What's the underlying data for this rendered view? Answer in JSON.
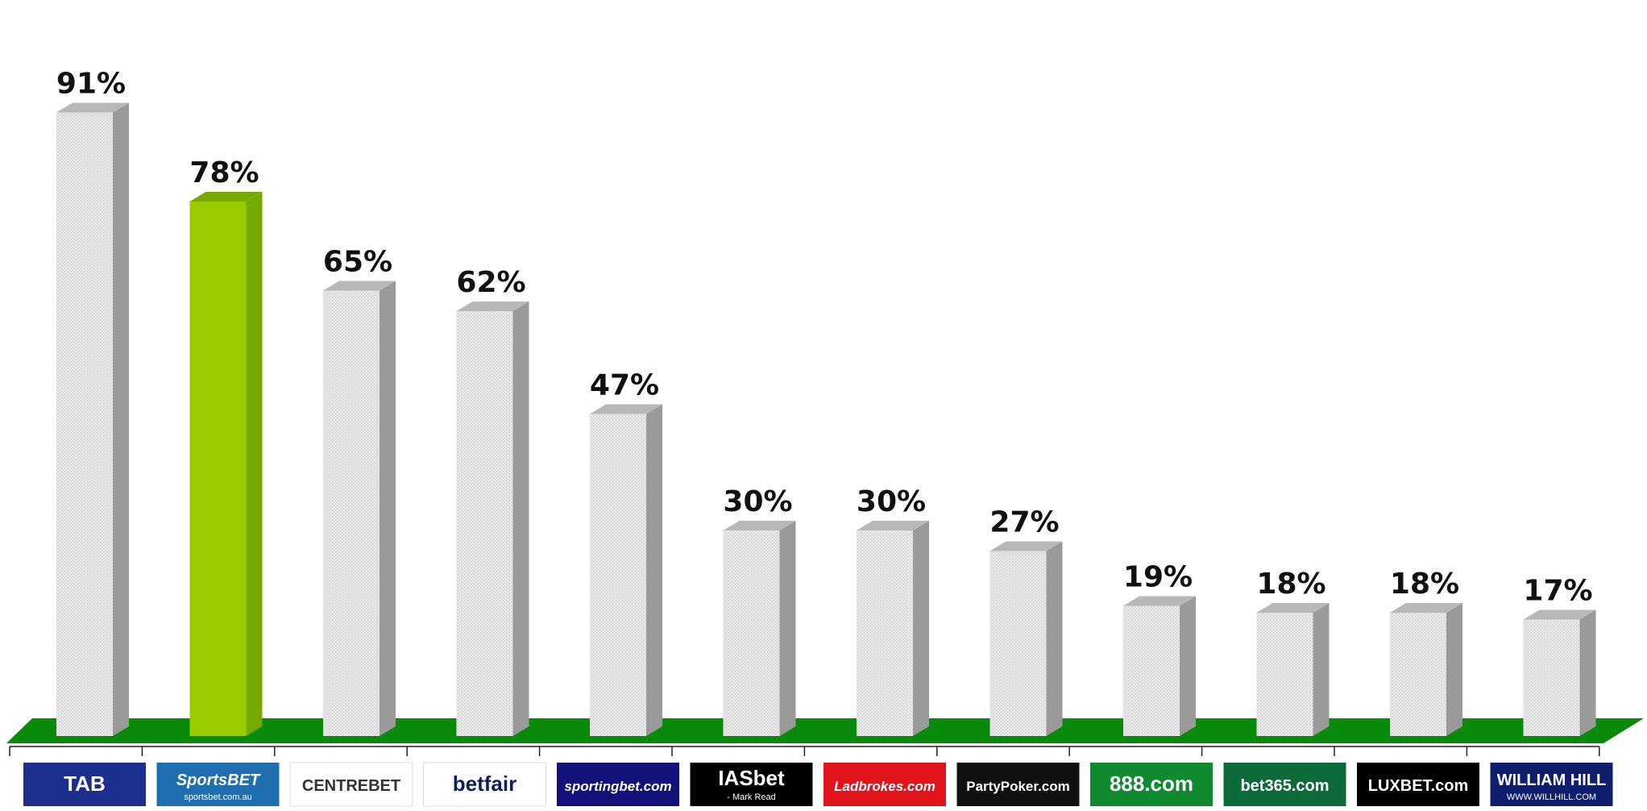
{
  "chart_data": {
    "type": "bar",
    "categories": [
      "TAB",
      "SportsBet",
      "Centrebet",
      "betfair",
      "sportingbet.com",
      "IASbet",
      "Ladbrokes.com",
      "PartyPoker.com",
      "888.com",
      "bet365.com",
      "LUXBET.com",
      "William Hill"
    ],
    "values": [
      91,
      78,
      65,
      62,
      47,
      30,
      30,
      27,
      19,
      18,
      18,
      17
    ],
    "value_labels": [
      "91%",
      "78%",
      "65%",
      "62%",
      "47%",
      "30%",
      "30%",
      "27%",
      "19%",
      "18%",
      "18%",
      "17%"
    ],
    "highlight_index": 1,
    "ylim": [
      0,
      100
    ],
    "grid": false,
    "legend": "none",
    "colors": {
      "bar_face": "#e4e4e4",
      "bar_side": "#9a9a9a",
      "bar_top": "#b8b8b8",
      "highlight_face": "#99cc00",
      "highlight_side": "#77aa00",
      "floor": "#0a8a0a"
    }
  },
  "logos": [
    {
      "text": "TAB",
      "bg": "#1c2f8f",
      "fg": "#ffffff"
    },
    {
      "text": "SportsBET",
      "sub": "sportsbet.com.au",
      "bg": "#1f6fb0",
      "fg": "#ffffff"
    },
    {
      "text": "CENTREBET",
      "bg": "#ffffff",
      "fg": "#333333"
    },
    {
      "text": "betfair",
      "bg": "#ffffff",
      "fg": "#0a1f5c"
    },
    {
      "text": "sportingbet.com",
      "bg": "#12127a",
      "fg": "#ffffff"
    },
    {
      "text": "IASbet",
      "sub": "- Mark Read",
      "bg": "#000000",
      "fg": "#ffffff"
    },
    {
      "text": "Ladbrokes.com",
      "bg": "#e2141b",
      "fg": "#ffffff"
    },
    {
      "text": "PartyPoker.com",
      "bg": "#111111",
      "fg": "#ffffff"
    },
    {
      "text": "888.com",
      "bg": "#0f8a2e",
      "fg": "#ffffff"
    },
    {
      "text": "bet365.com",
      "bg": "#0d6b3a",
      "fg": "#ffffff"
    },
    {
      "text": "LUXBET.com",
      "bg": "#000000",
      "fg": "#ffffff"
    },
    {
      "text": "WILLIAM HILL",
      "sub": "WWW.WILLHILL.COM",
      "bg": "#0f1f6e",
      "fg": "#ffffff"
    }
  ]
}
